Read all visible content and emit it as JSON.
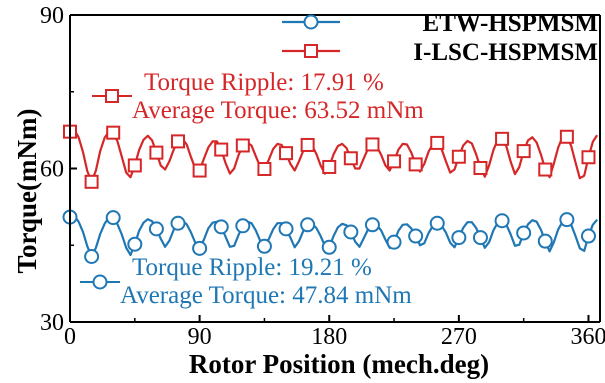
{
  "chart_data": {
    "type": "line",
    "xlabel": "Rotor Position (mech.deg)",
    "ylabel": "Torque(mNm)",
    "xlim": [
      0,
      368
    ],
    "ylim": [
      30,
      90
    ],
    "xticks": [
      "0",
      "90",
      "180",
      "270",
      "360"
    ],
    "yticks": [
      "30",
      "60",
      "90"
    ],
    "legend_position": "top-right",
    "series": [
      {
        "name": "ETW-HSPMSM",
        "color": "#1f77b4",
        "marker": "circle",
        "annotation": [
          "Torque Ripple: 19.21 %",
          "Average Torque: 47.84 mNm"
        ],
        "x": [
          0,
          3,
          6,
          9,
          12,
          15,
          18,
          21,
          24,
          27,
          30,
          33,
          36,
          39,
          42,
          45,
          48,
          51,
          54,
          57,
          60,
          63,
          66,
          69,
          72,
          75,
          78,
          81,
          84,
          87,
          90,
          93,
          96,
          99,
          102,
          105,
          108,
          111,
          114,
          117,
          120,
          123,
          126,
          129,
          132,
          135,
          138,
          141,
          144,
          147,
          150,
          153,
          156,
          159,
          162,
          165,
          168,
          171,
          174,
          177,
          180,
          183,
          186,
          189,
          192,
          195,
          198,
          201,
          204,
          207,
          210,
          213,
          216,
          219,
          222,
          225,
          228,
          231,
          234,
          237,
          240,
          243,
          246,
          249,
          252,
          255,
          258,
          261,
          264,
          267,
          270,
          273,
          276,
          279,
          282,
          285,
          288,
          291,
          294,
          297,
          300,
          303,
          306,
          309,
          312,
          315,
          318,
          321,
          324,
          327,
          330,
          333,
          336,
          339,
          342,
          345,
          348,
          351,
          354,
          357,
          360,
          363,
          366
        ],
        "y": [
          50.5,
          50.8,
          49.6,
          47.6,
          44.8,
          42.8,
          44.5,
          47.2,
          49.2,
          50.5,
          50.4,
          49.1,
          47.1,
          44.5,
          43.1,
          45.2,
          47.8,
          49.4,
          50.1,
          49.7,
          48.2,
          46.3,
          44.7,
          45.9,
          48.0,
          49.3,
          49.8,
          49.1,
          47.5,
          45.5,
          44.4,
          46.1,
          48.3,
          49.4,
          49.6,
          48.6,
          46.7,
          44.7,
          44.9,
          47.0,
          48.8,
          49.6,
          49.3,
          47.9,
          45.9,
          44.8,
          46.2,
          48.1,
          49.3,
          49.3,
          48.2,
          46.5,
          44.6,
          45.8,
          47.8,
          49.0,
          49.2,
          48.4,
          46.8,
          44.9,
          44.6,
          46.8,
          48.5,
          49.2,
          48.9,
          47.6,
          45.7,
          44.7,
          46.4,
          48.1,
          49.0,
          49.0,
          47.9,
          46.1,
          44.5,
          45.6,
          47.8,
          49.0,
          49.1,
          48.3,
          46.8,
          45.0,
          45.4,
          47.4,
          48.8,
          49.3,
          48.8,
          47.5,
          45.5,
          44.6,
          46.5,
          48.4,
          49.5,
          49.5,
          48.4,
          46.5,
          44.5,
          45.6,
          47.9,
          49.4,
          49.8,
          49.0,
          47.1,
          44.9,
          45.1,
          47.4,
          49.1,
          49.9,
          49.6,
          48.0,
          45.8,
          43.8,
          45.6,
          48.1,
          49.6,
          50.0,
          49.0,
          46.8,
          44.4,
          43.9,
          46.8,
          49.0,
          50.0
        ]
      },
      {
        "name": "I-LSC-HSPMSM",
        "color": "#d62728",
        "marker": "square",
        "annotation": [
          "Torque Ripple: 17.91 %",
          "Average Torque: 63.52 mNm"
        ],
        "x": [
          0,
          3,
          6,
          9,
          12,
          15,
          18,
          21,
          24,
          27,
          30,
          33,
          36,
          39,
          42,
          45,
          48,
          51,
          54,
          57,
          60,
          63,
          66,
          69,
          72,
          75,
          78,
          81,
          84,
          87,
          90,
          93,
          96,
          99,
          102,
          105,
          108,
          111,
          114,
          117,
          120,
          123,
          126,
          129,
          132,
          135,
          138,
          141,
          144,
          147,
          150,
          153,
          156,
          159,
          162,
          165,
          168,
          171,
          174,
          177,
          180,
          183,
          186,
          189,
          192,
          195,
          198,
          201,
          204,
          207,
          210,
          213,
          216,
          219,
          222,
          225,
          228,
          231,
          234,
          237,
          240,
          243,
          246,
          249,
          252,
          255,
          258,
          261,
          264,
          267,
          270,
          273,
          276,
          279,
          282,
          285,
          288,
          291,
          294,
          297,
          300,
          303,
          306,
          309,
          312,
          315,
          318,
          321,
          324,
          327,
          330,
          333,
          336,
          339,
          342,
          345,
          348,
          351,
          354,
          357,
          360,
          363,
          366
        ],
        "y": [
          67.2,
          67.5,
          66.1,
          63.2,
          59.5,
          57.4,
          59.6,
          63.4,
          66.0,
          67.2,
          67.0,
          65.3,
          62.3,
          59.2,
          58.3,
          60.6,
          63.6,
          65.6,
          66.4,
          65.5,
          63.1,
          60.6,
          59.8,
          61.4,
          63.7,
          65.3,
          65.8,
          64.7,
          62.2,
          60.0,
          59.6,
          61.9,
          64.1,
          65.3,
          65.3,
          63.7,
          61.1,
          59.0,
          60.0,
          62.6,
          64.5,
          65.1,
          64.5,
          62.4,
          60.4,
          59.9,
          61.7,
          63.8,
          64.8,
          64.6,
          63.0,
          60.9,
          59.6,
          61.4,
          63.5,
          64.6,
          64.5,
          62.9,
          60.6,
          59.0,
          60.3,
          62.8,
          64.4,
          64.8,
          64.0,
          62.0,
          60.0,
          60.0,
          62.0,
          63.9,
          64.7,
          64.3,
          62.7,
          60.6,
          59.6,
          61.4,
          63.7,
          64.8,
          64.7,
          63.1,
          60.8,
          59.4,
          60.9,
          63.3,
          64.8,
          65.0,
          63.8,
          61.4,
          59.2,
          59.8,
          62.3,
          64.5,
          65.4,
          64.9,
          62.8,
          60.1,
          58.4,
          60.6,
          63.6,
          65.6,
          65.8,
          64.3,
          61.3,
          58.9,
          60.3,
          63.4,
          65.5,
          66.1,
          65.1,
          62.7,
          59.8,
          58.3,
          61.0,
          64.1,
          66.2,
          66.2,
          64.4,
          61.2,
          58.1,
          58.6,
          62.2,
          65.2,
          66.5
        ]
      }
    ]
  }
}
